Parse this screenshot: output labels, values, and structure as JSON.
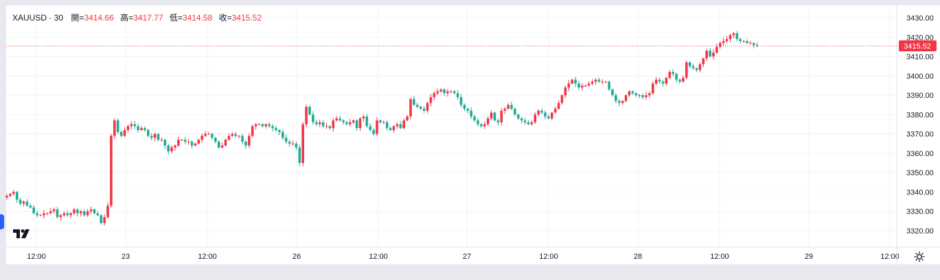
{
  "legend": {
    "symbol": "XAUUSD · 30",
    "open_label": "開=",
    "open_value": "3414.66",
    "high_label": "高=",
    "high_value": "3417.77",
    "low_label": "低=",
    "low_value": "3414.58",
    "close_label": "收=",
    "close_value": "3415.52"
  },
  "colors": {
    "up": "#f23645",
    "down": "#22ab94",
    "grid": "#f0f3fa",
    "last_price_line": "#f23645"
  },
  "icons": {
    "logo": "tradingview-logo-icon",
    "settings": "gear-icon",
    "left_tab": "collapse-tab-icon"
  },
  "chart_data": {
    "type": "candlestick",
    "symbol": "XAUUSD",
    "interval": "30",
    "last_price": 3415.52,
    "y_axis": {
      "ticks": [
        3430,
        3420,
        3410,
        3400,
        3390,
        3380,
        3370,
        3360,
        3350,
        3340,
        3330,
        3320
      ],
      "tick_labels": [
        "3430.00",
        "3420.00",
        "3410.00",
        "3400.00",
        "3390.00",
        "3380.00",
        "3370.00",
        "3360.00",
        "3350.00",
        "3340.00",
        "3330.00",
        "3320.00"
      ],
      "range": [
        3316,
        3434
      ]
    },
    "x_axis": {
      "tick_labels": [
        "12:00",
        "23",
        "12:00",
        "26",
        "12:00",
        "27",
        "12:00",
        "28",
        "12:00",
        "29",
        "12:00"
      ]
    },
    "grid": true,
    "closes": [
      3338,
      3339,
      3340,
      3336,
      3334,
      3335,
      3333,
      3332,
      3329,
      3328,
      3328,
      3329,
      3329,
      3330,
      3331,
      3327,
      3328,
      3329,
      3328,
      3329,
      3331,
      3329,
      3330,
      3328,
      3330,
      3331,
      3329,
      3328,
      3324,
      3327,
      3333,
      3369,
      3377,
      3371,
      3369,
      3372,
      3374,
      3375,
      3374,
      3372,
      3373,
      3372,
      3369,
      3368,
      3370,
      3367,
      3367,
      3364,
      3361,
      3363,
      3364,
      3367,
      3367,
      3366,
      3366,
      3364,
      3365,
      3367,
      3369,
      3370,
      3370,
      3368,
      3366,
      3363,
      3364,
      3367,
      3369,
      3370,
      3369,
      3369,
      3366,
      3364,
      3369,
      3374,
      3375,
      3375,
      3374,
      3375,
      3374,
      3373,
      3372,
      3371,
      3368,
      3366,
      3365,
      3365,
      3363,
      3355,
      3375,
      3384,
      3380,
      3376,
      3375,
      3376,
      3374,
      3374,
      3373,
      3377,
      3378,
      3377,
      3376,
      3375,
      3376,
      3377,
      3373,
      3378,
      3379,
      3374,
      3372,
      3370,
      3377,
      3376,
      3376,
      3373,
      3372,
      3374,
      3375,
      3373,
      3377,
      3379,
      3388,
      3385,
      3384,
      3383,
      3382,
      3386,
      3389,
      3391,
      3392,
      3393,
      3391,
      3392,
      3392,
      3391,
      3389,
      3385,
      3383,
      3382,
      3379,
      3377,
      3375,
      3374,
      3375,
      3378,
      3381,
      3377,
      3376,
      3382,
      3383,
      3385,
      3383,
      3380,
      3378,
      3377,
      3376,
      3375,
      3376,
      3380,
      3382,
      3381,
      3379,
      3378,
      3381,
      3383,
      3386,
      3390,
      3394,
      3396,
      3398,
      3396,
      3394,
      3395,
      3395,
      3396,
      3397,
      3398,
      3397,
      3397,
      3397,
      3393,
      3390,
      3387,
      3386,
      3387,
      3390,
      3392,
      3391,
      3390,
      3390,
      3389,
      3390,
      3391,
      3396,
      3398,
      3397,
      3396,
      3399,
      3402,
      3401,
      3398,
      3397,
      3399,
      3407,
      3405,
      3404,
      3403,
      3406,
      3409,
      3413,
      3410,
      3412,
      3415,
      3417,
      3418,
      3419,
      3421,
      3422,
      3419,
      3418,
      3418,
      3417,
      3417,
      3416,
      3415.5
    ]
  }
}
